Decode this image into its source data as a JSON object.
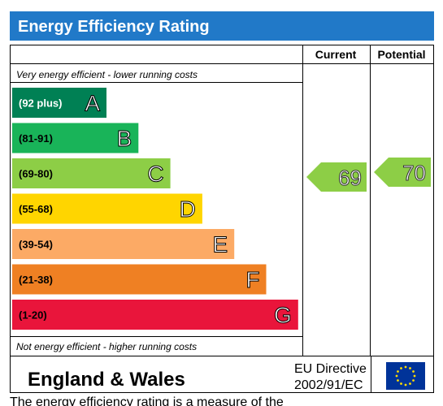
{
  "chart_data": {
    "type": "bar",
    "title": "Energy Efficiency Rating",
    "column_current": "Current",
    "column_potential": "Potential",
    "top_note": "Very energy efficient - lower running costs",
    "bottom_note": "Not energy efficient - higher running costs",
    "bands": [
      {
        "range": "(92 plus)",
        "letter": "A",
        "color": "#008054"
      },
      {
        "range": "(81-91)",
        "letter": "B",
        "color": "#19b459"
      },
      {
        "range": "(69-80)",
        "letter": "C",
        "color": "#8dce46"
      },
      {
        "range": "(55-68)",
        "letter": "D",
        "color": "#ffd500"
      },
      {
        "range": "(39-54)",
        "letter": "E",
        "color": "#fcaa65"
      },
      {
        "range": "(21-38)",
        "letter": "F",
        "color": "#ef8023"
      },
      {
        "range": "(1-20)",
        "letter": "G",
        "color": "#e9153b"
      }
    ],
    "current_value": 69,
    "potential_value": 70,
    "arrow_color": "#8dce46",
    "header_color": "#2179c8"
  },
  "footer": {
    "region": "England & Wales",
    "directive_line1": "EU Directive",
    "directive_line2": "2002/91/EC",
    "flag_icon": "eu-flag-icon"
  },
  "caption": "The energy efficiency rating is a measure of the"
}
